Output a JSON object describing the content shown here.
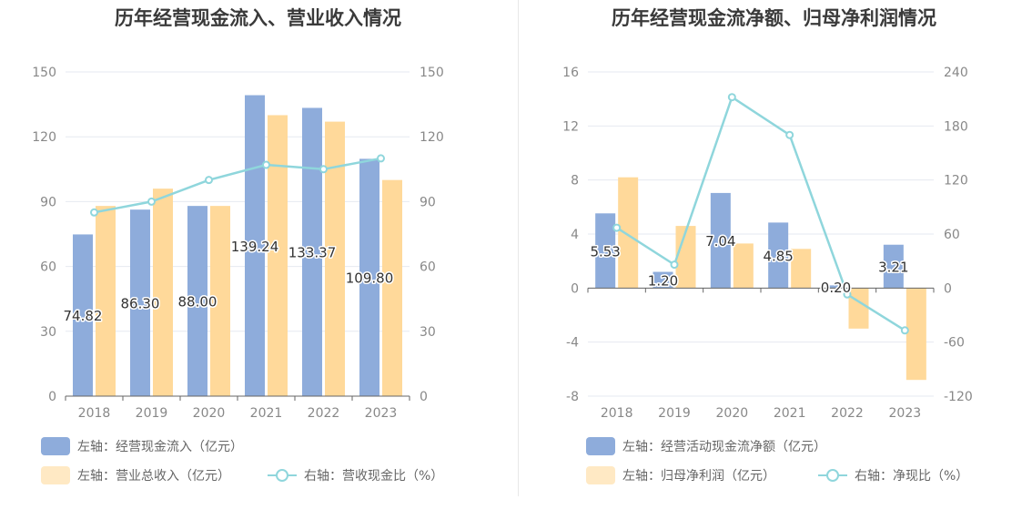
{
  "colors": {
    "bar_left": "#8eacdb",
    "bar_right": "#ffd99a",
    "line": "#8fd6dc",
    "grid": "#e6e9f0",
    "axis_text": "#888888"
  },
  "chart_data": [
    {
      "type": "bar",
      "title": "历年经营现金流入、营业收入情况",
      "categories": [
        "2018",
        "2019",
        "2020",
        "2021",
        "2022",
        "2023"
      ],
      "y_left": {
        "ylim": [
          0,
          150
        ],
        "ticks": [
          "0",
          "30",
          "60",
          "90",
          "120",
          "150"
        ]
      },
      "y_right": {
        "ylim": [
          0,
          150
        ],
        "ticks": [
          "0",
          "30",
          "60",
          "90",
          "120",
          "150"
        ]
      },
      "series": [
        {
          "name": "左轴：经营现金流入（亿元）",
          "kind": "bar",
          "axis": "left",
          "values": [
            74.82,
            86.3,
            88.0,
            139.24,
            133.37,
            109.8
          ],
          "labels": [
            "74.82",
            "86.30",
            "88.00",
            "139.24",
            "133.37",
            "109.80"
          ]
        },
        {
          "name": "左轴：营业总收入（亿元）",
          "kind": "bar",
          "axis": "left",
          "values": [
            88,
            96,
            88,
            130,
            127,
            100
          ]
        },
        {
          "name": "右轴：营收现金比（%）",
          "kind": "line",
          "axis": "right",
          "values": [
            85,
            90,
            100,
            107,
            105,
            110
          ]
        }
      ],
      "legend": [
        "左轴：经营现金流入（亿元）",
        "左轴：营业总收入（亿元）",
        "右轴：营收现金比（%）"
      ]
    },
    {
      "type": "bar",
      "title": "历年经营现金流净额、归母净利润情况",
      "categories": [
        "2018",
        "2019",
        "2020",
        "2021",
        "2022",
        "2023"
      ],
      "y_left": {
        "ylim": [
          -8,
          16
        ],
        "ticks": [
          "-8",
          "-4",
          "0",
          "4",
          "8",
          "12",
          "16"
        ]
      },
      "y_right": {
        "ylim": [
          -120,
          240
        ],
        "ticks": [
          "-120",
          "-60",
          "0",
          "60",
          "120",
          "180",
          "240"
        ]
      },
      "series": [
        {
          "name": "左轴：经营活动现金流净额（亿元）",
          "kind": "bar",
          "axis": "left",
          "values": [
            5.53,
            1.2,
            7.04,
            4.85,
            0.2,
            3.21
          ],
          "labels": [
            "5.53",
            "1.20",
            "7.04",
            "4.85",
            "0.20",
            "3.21"
          ]
        },
        {
          "name": "左轴：归母净利润（亿元）",
          "kind": "bar",
          "axis": "left",
          "values": [
            8.2,
            4.6,
            3.3,
            2.9,
            -3.0,
            -6.8
          ]
        },
        {
          "name": "右轴：净现比（%）",
          "kind": "line",
          "axis": "right",
          "values": [
            67,
            26,
            212,
            170,
            -7,
            -47
          ]
        }
      ],
      "legend": [
        "左轴：经营活动现金流净额（亿元）",
        "左轴：归母净利润（亿元）",
        "右轴：净现比（%）"
      ]
    }
  ]
}
